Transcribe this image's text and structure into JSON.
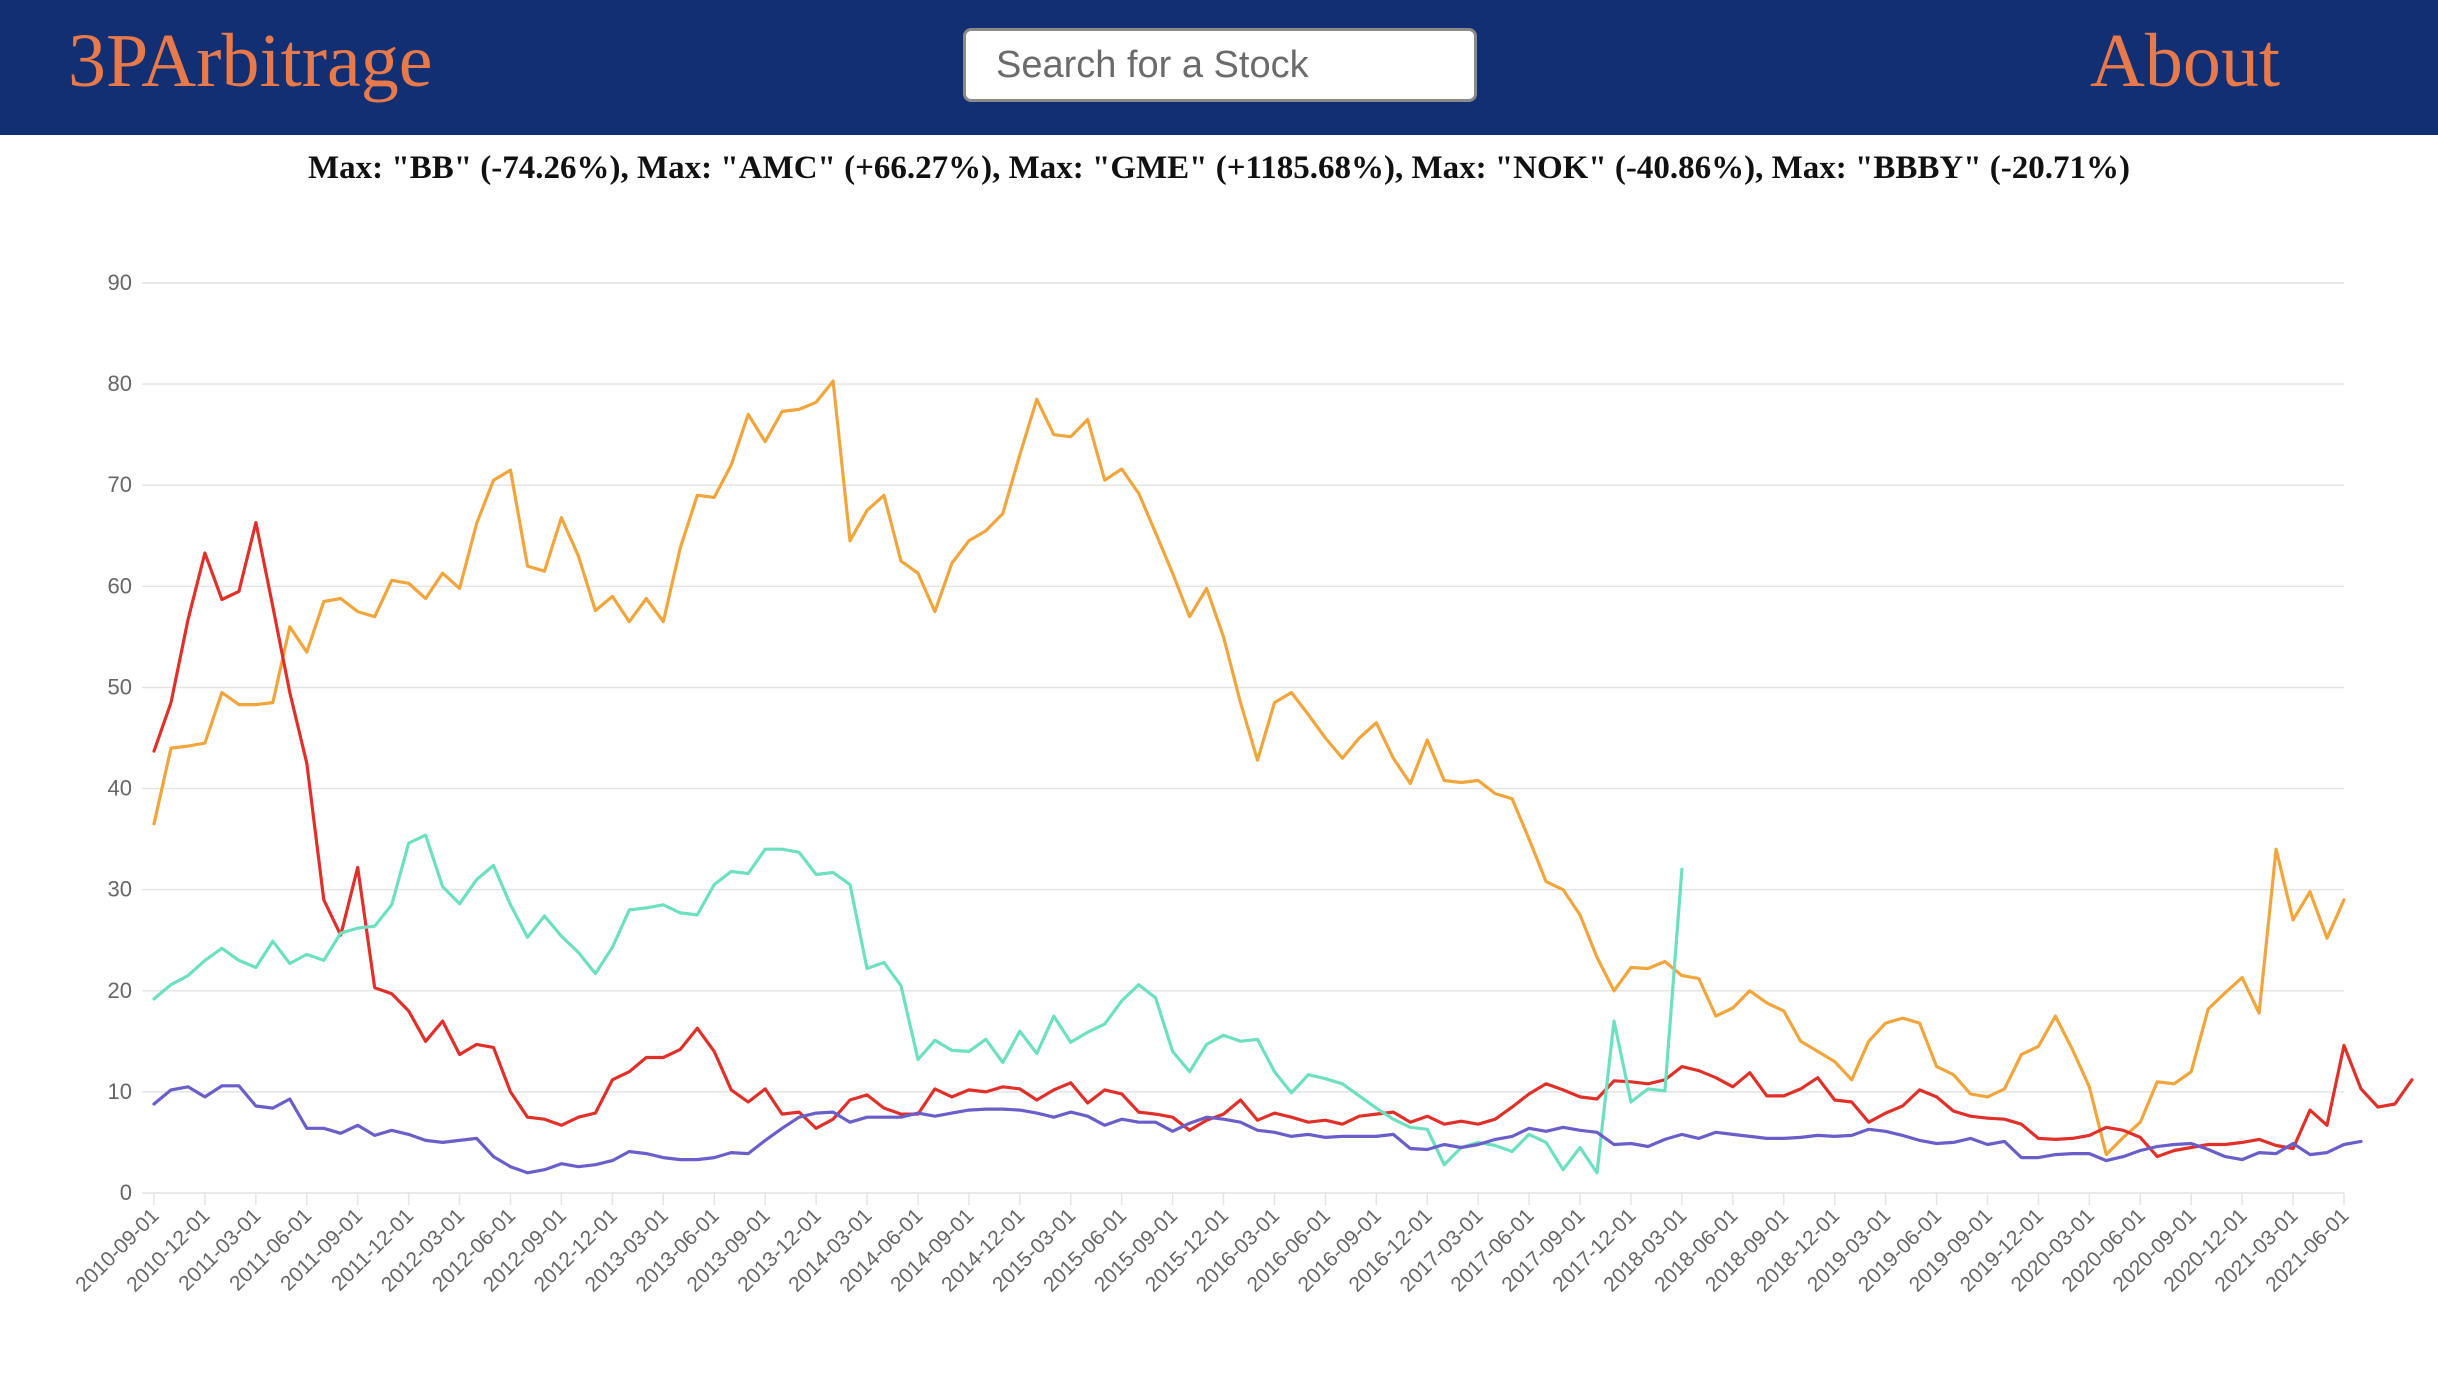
{
  "navbar": {
    "brand": "3PArbitrage",
    "about": "About",
    "search_placeholder": "Search for a Stock"
  },
  "subtitle": "Max: \"BB\" (-74.26%), Max: \"AMC\" (+66.27%), Max: \"GME\" (+1185.68%), Max: \"NOK\" (-40.86%), Max: \"BBBY\" (-20.71%)",
  "colors": {
    "navbar": "#112f72",
    "brand": "#e8794a",
    "orange": "#f0a63c",
    "red": "#e0302a",
    "teal": "#6de0bf",
    "purple": "#6a5ec8"
  },
  "chart_data": {
    "type": "line",
    "title": "",
    "xlabel": "",
    "ylabel": "",
    "ylim": [
      0,
      90
    ],
    "yticks": [
      0,
      10,
      20,
      30,
      40,
      50,
      60,
      70,
      80,
      90
    ],
    "grid": true,
    "legend": "none",
    "x_start": "2010-09",
    "x_labels": [
      "2010-09-01",
      "2010-12-01",
      "2011-03-01",
      "2011-06-01",
      "2011-09-01",
      "2011-12-01",
      "2012-03-01",
      "2012-06-01",
      "2012-09-01",
      "2012-12-01",
      "2013-03-01",
      "2013-06-01",
      "2013-09-01",
      "2013-12-01",
      "2014-03-01",
      "2014-06-01",
      "2014-09-01",
      "2014-12-01",
      "2015-03-01",
      "2015-06-01",
      "2015-09-01",
      "2015-12-01",
      "2016-03-01",
      "2016-06-01",
      "2016-09-01",
      "2016-12-01",
      "2017-03-01",
      "2017-06-01",
      "2017-09-01",
      "2017-12-01",
      "2018-03-01",
      "2018-06-01",
      "2018-09-01",
      "2018-12-01",
      "2019-03-01",
      "2019-06-01",
      "2019-09-01",
      "2019-12-01",
      "2020-03-01",
      "2020-06-01",
      "2020-09-01",
      "2020-12-01",
      "2021-03-01",
      "2021-06-01"
    ],
    "series": [
      {
        "color": "#f0a63c",
        "values": [
          36.5,
          44,
          44.2,
          44.5,
          49.5,
          48.3,
          48.3,
          48.5,
          56,
          53.5,
          58.5,
          58.8,
          57.5,
          57,
          60.6,
          60.3,
          58.8,
          61.3,
          59.8,
          66.2,
          70.5,
          71.5,
          62,
          61.5,
          66.8,
          63,
          57.6,
          59,
          56.5,
          58.8,
          56.5,
          63.8,
          69,
          68.8,
          72,
          77,
          74.3,
          77.3,
          77.5,
          78.2,
          80.3,
          64.5,
          67.5,
          69,
          62.5,
          61.3,
          57.5,
          62.3,
          64.5,
          65.5,
          67.2,
          73,
          78.5,
          75,
          74.8,
          76.5,
          70.5,
          71.6,
          69.2,
          65.3,
          61.3,
          57,
          59.8,
          55,
          48.5,
          42.8,
          48.5,
          49.5,
          47.3,
          45,
          43,
          45,
          46.5,
          43,
          40.5,
          44.8,
          40.8,
          40.6,
          40.8,
          39.5,
          39,
          35,
          30.8,
          30,
          27.5,
          23.3,
          20,
          22.3,
          22.2,
          22.9,
          21.5,
          21.2,
          17.5,
          18.3,
          20,
          18.8,
          18,
          15,
          14,
          13,
          11.2,
          15,
          16.8,
          17.3,
          16.8,
          12.5,
          11.7,
          9.8,
          9.5,
          10.3,
          13.7,
          14.5,
          17.5,
          14.2,
          10.5,
          3.8,
          5.5,
          7,
          11,
          10.8,
          12,
          18.2,
          19.8,
          21.3,
          17.8,
          34,
          27,
          29.8,
          25.2,
          29
        ]
      },
      {
        "color": "#e0302a",
        "values": [
          43.7,
          48.5,
          56.7,
          63.3,
          58.7,
          59.5,
          66.3,
          58,
          49.5,
          42.5,
          29,
          25.5,
          32.2,
          20.3,
          19.7,
          18,
          15,
          17,
          13.7,
          14.7,
          14.4,
          10,
          7.5,
          7.3,
          6.7,
          7.5,
          7.9,
          11.2,
          12,
          13.4,
          13.4,
          14.2,
          16.3,
          14,
          10.2,
          9,
          10.3,
          7.8,
          8,
          6.4,
          7.3,
          9.2,
          9.7,
          8.4,
          7.8,
          7.8,
          10.3,
          9.5,
          10.2,
          10,
          10.5,
          10.3,
          9.2,
          10.2,
          10.9,
          8.9,
          10.2,
          9.8,
          8,
          7.8,
          7.5,
          6.2,
          7.2,
          7.8,
          9.2,
          7.2,
          7.9,
          7.5,
          7,
          7.2,
          6.8,
          7.6,
          7.8,
          8,
          7,
          7.6,
          6.8,
          7.1,
          6.8,
          7.3,
          8.5,
          9.8,
          10.8,
          10.2,
          9.5,
          9.3,
          11.1,
          11,
          10.8,
          11.2,
          12.5,
          12.1,
          11.4,
          10.5,
          11.9,
          9.6,
          9.6,
          10.3,
          11.4,
          9.2,
          9,
          7,
          7.9,
          8.6,
          10.2,
          9.5,
          8.1,
          7.6,
          7.4,
          7.3,
          6.8,
          5.4,
          5.3,
          5.4,
          5.7,
          6.5,
          6.2,
          5.5,
          3.6,
          4.2,
          4.5,
          4.8,
          4.8,
          5,
          5.3,
          4.7,
          4.4,
          8.2,
          6.7,
          14.6,
          10.3,
          8.5,
          8.8,
          11.2
        ]
      },
      {
        "color": "#6de0bf",
        "values": [
          19.2,
          20.6,
          21.5,
          23,
          24.2,
          23,
          22.3,
          24.9,
          22.7,
          23.6,
          23,
          25.7,
          26.2,
          26.4,
          28.5,
          34.6,
          35.4,
          30.3,
          28.6,
          31,
          32.4,
          28.5,
          25.3,
          27.4,
          25.4,
          23.8,
          21.7,
          24.3,
          28,
          28.2,
          28.5,
          27.7,
          27.5,
          30.5,
          31.8,
          31.6,
          34,
          34,
          33.7,
          31.5,
          31.7,
          30.5,
          22.2,
          22.8,
          20.5,
          13.2,
          15.1,
          14.1,
          14,
          15.2,
          12.9,
          16,
          13.8,
          17.5,
          14.9,
          15.9,
          16.7,
          19,
          20.6,
          19.3,
          14,
          12,
          14.7,
          15.6,
          15,
          15.2,
          12,
          9.9,
          11.7,
          11.3,
          10.8,
          9.6,
          8.4,
          7.3,
          6.5,
          6.3,
          2.8,
          4.5,
          5,
          4.7,
          4.1,
          5.8,
          5,
          2.3,
          4.5,
          2,
          17,
          9,
          10.3,
          10.1,
          32
        ]
      },
      {
        "color": "#6a5ec8",
        "values": [
          8.8,
          10.2,
          10.5,
          9.5,
          10.6,
          10.6,
          8.6,
          8.4,
          9.3,
          6.4,
          6.4,
          5.9,
          6.7,
          5.7,
          6.2,
          5.8,
          5.2,
          5,
          5.2,
          5.4,
          3.6,
          2.6,
          2,
          2.3,
          2.9,
          2.6,
          2.8,
          3.2,
          4.1,
          3.9,
          3.5,
          3.3,
          3.3,
          3.5,
          4,
          3.9,
          5.2,
          6.4,
          7.5,
          7.9,
          8,
          7,
          7.5,
          7.5,
          7.5,
          7.9,
          7.6,
          7.9,
          8.2,
          8.3,
          8.3,
          8.2,
          7.9,
          7.5,
          8,
          7.6,
          6.7,
          7.3,
          7,
          7,
          6.1,
          6.9,
          7.5,
          7.3,
          7,
          6.2,
          6,
          5.6,
          5.8,
          5.5,
          5.6,
          5.6,
          5.6,
          5.8,
          4.4,
          4.3,
          4.8,
          4.5,
          4.8,
          5.3,
          5.6,
          6.4,
          6.1,
          6.5,
          6.2,
          6,
          4.8,
          4.9,
          4.6,
          5.3,
          5.8,
          5.4,
          6,
          5.8,
          5.6,
          5.4,
          5.4,
          5.5,
          5.7,
          5.6,
          5.7,
          6.3,
          6.1,
          5.7,
          5.2,
          4.9,
          5,
          5.4,
          4.8,
          5.1,
          3.5,
          3.5,
          3.8,
          3.9,
          3.9,
          3.2,
          3.6,
          4.2,
          4.6,
          4.8,
          4.9,
          4.3,
          3.6,
          3.3,
          4,
          3.9,
          4.9,
          3.8,
          4,
          4.8,
          5.1
        ]
      }
    ]
  }
}
